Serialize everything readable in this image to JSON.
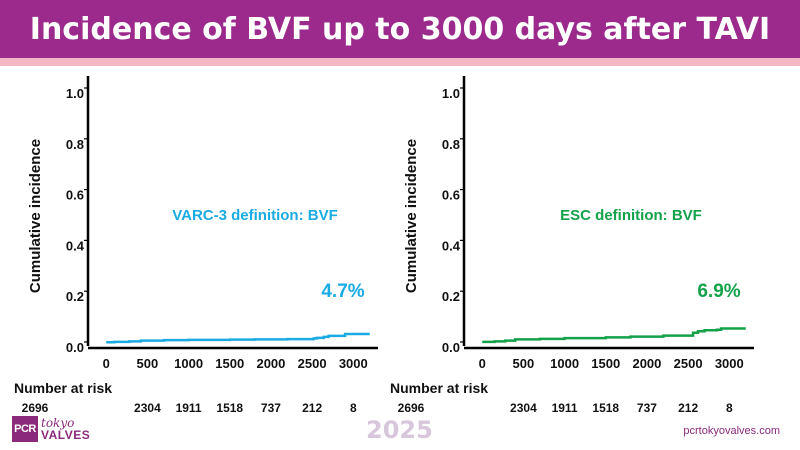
{
  "title": "Incidence of BVF up to 3000 days after TAVI",
  "footer": {
    "logo_box": "PCR",
    "logo_top": "tokyo",
    "logo_bottom": "VALVES",
    "year": "2025",
    "site": "pcrtokyovalves.com"
  },
  "colors": {
    "header": "#9c2a8c",
    "header_strip": "#f3b6c3",
    "varc": "#1aabe3",
    "esc": "#13a14a"
  },
  "chart_data": [
    {
      "type": "line",
      "ylabel": "Cumulative incidence",
      "xlabel": "",
      "xlim": [
        -100,
        3300
      ],
      "ylim": [
        0.0,
        1.0
      ],
      "xticks": [
        0,
        500,
        1000,
        1500,
        2000,
        2500,
        3000
      ],
      "yticks": [
        0.0,
        0.2,
        0.4,
        0.6,
        0.8,
        1.0
      ],
      "ytick_labels": [
        "0.0",
        "0.2",
        "0.4",
        "0.6",
        "0.8",
        "1.0"
      ],
      "annotation": "VARC-3 definition: BVF",
      "final_label": "4.7%",
      "color": "#1aabe3",
      "series": [
        {
          "x": [
            0,
            100,
            280,
            420,
            700,
            1000,
            1200,
            1500,
            1800,
            2200,
            2520,
            2560,
            2640,
            2700,
            2900,
            3200
          ],
          "y": [
            0.015,
            0.016,
            0.018,
            0.021,
            0.023,
            0.024,
            0.024,
            0.025,
            0.026,
            0.027,
            0.03,
            0.032,
            0.036,
            0.04,
            0.047,
            0.047
          ]
        }
      ],
      "risk_table": {
        "label": "Number at risk",
        "values": [
          "2696",
          "2304",
          "1911",
          "1518",
          "737",
          "212",
          "8"
        ]
      }
    },
    {
      "type": "line",
      "ylabel": "Cumulative incidence",
      "xlabel": "",
      "xlim": [
        -100,
        3300
      ],
      "ylim": [
        0.0,
        1.0
      ],
      "xticks": [
        0,
        500,
        1000,
        1500,
        2000,
        2500,
        3000
      ],
      "yticks": [
        0.0,
        0.2,
        0.4,
        0.6,
        0.8,
        1.0
      ],
      "ytick_labels": [
        "0.0",
        "0.2",
        "0.4",
        "0.6",
        "0.8",
        "1.0"
      ],
      "annotation": "ESC definition: BVF",
      "final_label": "6.9%",
      "color": "#13a14a",
      "series": [
        {
          "x": [
            0,
            150,
            280,
            400,
            700,
            1000,
            1500,
            1800,
            2200,
            2560,
            2620,
            2700,
            2850,
            2900,
            3200
          ],
          "y": [
            0.016,
            0.018,
            0.021,
            0.026,
            0.028,
            0.031,
            0.034,
            0.037,
            0.041,
            0.052,
            0.058,
            0.062,
            0.064,
            0.069,
            0.069
          ]
        }
      ],
      "risk_table": {
        "label": "Number at risk",
        "values": [
          "2696",
          "2304",
          "1911",
          "1518",
          "737",
          "212",
          "8"
        ]
      }
    }
  ]
}
